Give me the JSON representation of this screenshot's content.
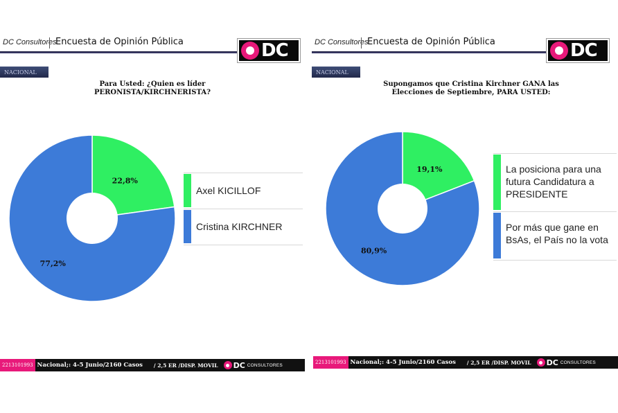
{
  "colors": {
    "accent": "#e8197a",
    "green": "#2fef62",
    "blue": "#3d7bd8",
    "footer_bg": "#111111"
  },
  "panels": [
    {
      "brand": "DC Consultores",
      "title": "Encuesta de Opinión Pública",
      "logo_text": "DC",
      "tag": "NACIONAL",
      "question_lines": [
        "Para Usted: ¿Quien es líder",
        "PERONISTA/KIRCHNERISTA?"
      ],
      "legend": [
        "Axel KICILLOF",
        "Cristina KIRCHNER"
      ],
      "footer": {
        "phone": "2213101993",
        "info": "Nacional;: 4-5 Junio/2160 Casos",
        "extra": "/ 2,5 ER /DISP. MOVIL",
        "logo_text": "DC",
        "consultores": "CONSULTORES"
      }
    },
    {
      "brand": "DC Consultores",
      "title": "Encuesta de Opinión Pública",
      "logo_text": "DC",
      "tag": "NACIONAL",
      "question_lines": [
        "Supongamos que Cristina Kirchner GANA las",
        "Elecciones de Septiembre, PARA USTED:"
      ],
      "legend": [
        "La posiciona para una futura Candidatura a PRESIDENTE",
        "Por más que gane en BsAs, el País no la vota"
      ],
      "footer": {
        "phone": "2213101993",
        "info": "Nacional;: 4-5 Junio/2160 Casos",
        "extra": "/ 2,5 ER /DISP. MOVIL",
        "logo_text": "DC",
        "consultores": "CONSULTORES"
      }
    }
  ],
  "chart_data": [
    {
      "type": "pie",
      "title": "Para Usted: ¿Quien es líder PERONISTA/KIRCHNERISTA?",
      "categories": [
        "Axel KICILLOF",
        "Cristina KIRCHNER"
      ],
      "values": [
        22.8,
        77.2
      ],
      "labels": [
        "22,8%",
        "77,2%"
      ],
      "colors": [
        "#2fef62",
        "#3d7bd8"
      ],
      "donut": true,
      "legend_position": "right"
    },
    {
      "type": "pie",
      "title": "Supongamos que Cristina Kirchner GANA las Elecciones de Septiembre, PARA USTED:",
      "categories": [
        "La posiciona para una futura Candidatura a PRESIDENTE",
        "Por más que gane en BsAs, el País no la vota"
      ],
      "values": [
        19.1,
        80.9
      ],
      "labels": [
        "19,1%",
        "80,9%"
      ],
      "colors": [
        "#2fef62",
        "#3d7bd8"
      ],
      "donut": true,
      "legend_position": "right"
    }
  ]
}
